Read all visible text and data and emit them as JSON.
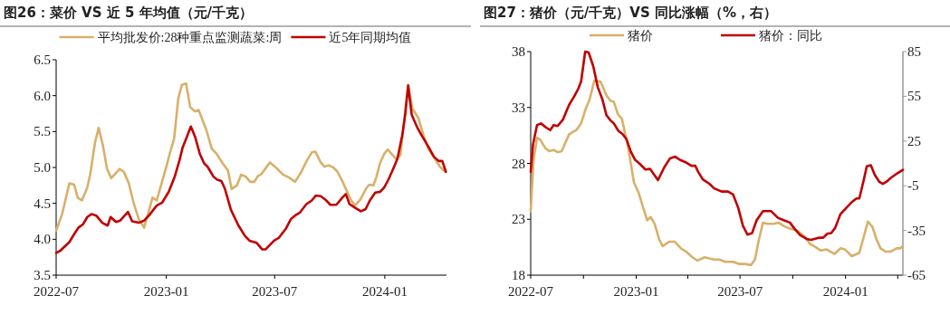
{
  "chart_data": [
    {
      "type": "line",
      "title": "图26：菜价 VS 近 5 年均值（元/千克）",
      "legend": "top",
      "xlim": [
        "2022-07-01",
        "2024-04-13"
      ],
      "xticks": [
        {
          "value": "2022-07-01",
          "label": "2022-07"
        },
        {
          "value": "2023-01-01",
          "label": "2023-01"
        },
        {
          "value": "2023-07-01",
          "label": "2023-07"
        },
        {
          "value": "2024-01-01",
          "label": "2024-01"
        }
      ],
      "ylim": [
        3.5,
        6.5
      ],
      "yticks": [
        3.5,
        {
          "value": 4,
          "label": "4.0"
        },
        4.5,
        {
          "value": 5,
          "label": "5.0"
        },
        5.5,
        {
          "value": 6,
          "label": "6.0"
        },
        6.5
      ],
      "series": [
        {
          "name": "平均批发价:28种重点监测蔬菜:周",
          "color": "#d8b06a",
          "x": [
            "2022-07-01",
            "2022-07-11",
            "2022-07-23",
            "2022-07-31",
            "2022-08-06",
            "2022-08-13",
            "2022-08-22",
            "2022-08-27",
            "2022-09-04",
            "2022-09-10",
            "2022-09-17",
            "2022-09-24",
            "2022-10-01",
            "2022-10-15",
            "2022-10-22",
            "2022-10-30",
            "2022-11-08",
            "2022-11-16",
            "2022-11-25",
            "2022-12-09",
            "2022-12-16",
            "2022-12-31",
            "2023-01-08",
            "2023-01-14",
            "2023-01-21",
            "2023-01-27",
            "2023-02-03",
            "2023-02-10",
            "2023-02-18",
            "2023-02-24",
            "2023-03-09",
            "2023-03-18",
            "2023-03-26",
            "2023-04-05",
            "2023-04-14",
            "2023-04-20",
            "2023-04-29",
            "2023-05-06",
            "2023-05-14",
            "2023-05-21",
            "2023-05-28",
            "2023-06-03",
            "2023-06-09",
            "2023-06-23",
            "2023-07-03",
            "2023-07-15",
            "2023-07-25",
            "2023-08-04",
            "2023-08-14",
            "2023-08-24",
            "2023-09-01",
            "2023-09-07",
            "2023-09-16",
            "2023-09-22",
            "2023-09-29",
            "2023-10-07",
            "2023-10-14",
            "2023-10-22",
            "2023-10-29",
            "2023-11-06",
            "2023-11-12",
            "2023-11-21",
            "2023-12-01",
            "2023-12-06",
            "2023-12-13",
            "2023-12-18",
            "2023-12-24",
            "2023-12-31",
            "2024-01-06",
            "2024-01-12",
            "2024-01-20",
            "2024-01-27",
            "2024-02-01",
            "2024-02-09",
            "2024-02-16",
            "2024-02-26",
            "2024-03-06",
            "2024-03-13",
            "2024-03-23",
            "2024-04-02",
            "2024-04-11"
          ],
          "values": [
            4.12,
            4.35,
            4.78,
            4.76,
            4.58,
            4.54,
            4.72,
            4.91,
            5.35,
            5.55,
            5.31,
            4.98,
            4.85,
            4.98,
            4.94,
            4.79,
            4.49,
            4.28,
            4.16,
            4.58,
            4.54,
            4.98,
            5.23,
            5.4,
            5.96,
            6.15,
            6.17,
            5.84,
            5.78,
            5.8,
            5.52,
            5.26,
            5.19,
            5.06,
            4.96,
            4.7,
            4.75,
            4.9,
            4.87,
            4.8,
            4.8,
            4.88,
            4.91,
            5.07,
            5.0,
            4.9,
            4.86,
            4.8,
            4.93,
            5.1,
            5.21,
            5.22,
            5.07,
            5.01,
            5.03,
            5.0,
            4.94,
            4.81,
            4.68,
            4.54,
            4.47,
            4.55,
            4.71,
            4.76,
            4.75,
            4.87,
            5.06,
            5.19,
            5.25,
            5.19,
            5.12,
            5.17,
            5.56,
            6.15,
            5.82,
            5.69,
            5.44,
            5.27,
            5.14,
            5.01,
            4.94
          ]
        },
        {
          "name": "近5年同期均值",
          "color": "#c00000",
          "x": [
            "2022-07-01",
            "2022-07-08",
            "2022-07-23",
            "2022-07-31",
            "2022-08-07",
            "2022-08-15",
            "2022-08-22",
            "2022-08-29",
            "2022-09-06",
            "2022-09-16",
            "2022-09-25",
            "2022-09-30",
            "2022-10-09",
            "2022-10-16",
            "2022-10-29",
            "2022-11-05",
            "2022-11-16",
            "2022-11-25",
            "2022-12-04",
            "2022-12-16",
            "2022-12-25",
            "2023-01-05",
            "2023-01-15",
            "2023-01-23",
            "2023-01-28",
            "2023-02-04",
            "2023-02-11",
            "2023-02-18",
            "2023-02-26",
            "2023-03-05",
            "2023-03-11",
            "2023-03-21",
            "2023-03-27",
            "2023-04-03",
            "2023-04-09",
            "2023-04-19",
            "2023-05-01",
            "2023-05-12",
            "2023-05-20",
            "2023-06-01",
            "2023-06-10",
            "2023-06-16",
            "2023-06-30",
            "2023-07-08",
            "2023-07-20",
            "2023-07-28",
            "2023-08-04",
            "2023-08-12",
            "2023-08-23",
            "2023-09-01",
            "2023-09-08",
            "2023-09-16",
            "2023-09-24",
            "2023-10-02",
            "2023-10-12",
            "2023-10-22",
            "2023-10-28",
            "2023-11-03",
            "2023-11-12",
            "2023-11-22",
            "2023-11-30",
            "2023-12-07",
            "2023-12-16",
            "2023-12-24",
            "2023-12-31",
            "2024-01-07",
            "2024-01-16",
            "2024-01-22",
            "2024-01-30",
            "2024-02-04",
            "2024-02-09",
            "2024-02-15",
            "2024-02-24",
            "2024-03-03",
            "2024-03-13",
            "2024-03-23",
            "2024-03-31",
            "2024-04-06",
            "2024-04-12"
          ],
          "values": [
            3.81,
            3.84,
            3.96,
            4.07,
            4.16,
            4.21,
            4.31,
            4.35,
            4.33,
            4.23,
            4.19,
            4.31,
            4.24,
            4.26,
            4.38,
            4.25,
            4.23,
            4.26,
            4.34,
            4.47,
            4.51,
            4.66,
            4.87,
            5.1,
            5.27,
            5.42,
            5.57,
            5.43,
            5.19,
            5.06,
            5.01,
            4.87,
            4.83,
            4.81,
            4.7,
            4.41,
            4.2,
            4.05,
            3.98,
            3.95,
            3.86,
            3.86,
            3.98,
            4.02,
            4.15,
            4.28,
            4.33,
            4.37,
            4.49,
            4.54,
            4.61,
            4.6,
            4.55,
            4.48,
            4.48,
            4.58,
            4.63,
            4.49,
            4.44,
            4.39,
            4.42,
            4.54,
            4.65,
            4.66,
            4.72,
            4.83,
            5.0,
            5.12,
            5.44,
            5.73,
            6.14,
            5.73,
            5.56,
            5.44,
            5.3,
            5.15,
            5.09,
            5.09,
            4.94
          ]
        }
      ]
    },
    {
      "type": "line",
      "title": "图27：猪价（元/千克）VS 同比涨幅（%，右）",
      "legend": "top",
      "xlim": [
        "2022-07-01",
        "2024-04-10"
      ],
      "xticks": [
        {
          "value": "2022-07-01",
          "label": "2022-07"
        },
        {
          "value": "2022-10-01",
          "label": null
        },
        {
          "value": "2023-01-01",
          "label": "2023-01"
        },
        {
          "value": "2023-04-01",
          "label": null
        },
        {
          "value": "2023-07-01",
          "label": "2023-07"
        },
        {
          "value": "2023-10-01",
          "label": null
        },
        {
          "value": "2024-01-01",
          "label": "2024-01"
        },
        {
          "value": "2024-04-01",
          "label": null
        }
      ],
      "ylim": [
        18,
        38
      ],
      "yticks": [
        18,
        23,
        28,
        33,
        38
      ],
      "y2lim": [
        -65,
        85
      ],
      "y2ticks": [
        -65,
        -35,
        -5,
        25,
        55,
        85
      ],
      "series": [
        {
          "name": "猪价",
          "color": "#d8b06a",
          "x": [
            "2022-07-01",
            "2022-07-06",
            "2022-07-12",
            "2022-07-18",
            "2022-07-26",
            "2022-08-02",
            "2022-08-10",
            "2022-08-17",
            "2022-08-24",
            "2022-09-06",
            "2022-09-19",
            "2022-09-27",
            "2022-10-05",
            "2022-10-11",
            "2022-10-20",
            "2022-10-31",
            "2022-11-10",
            "2022-11-17",
            "2022-11-23",
            "2022-11-30",
            "2022-12-07",
            "2022-12-18",
            "2022-12-28",
            "2023-01-05",
            "2023-01-14",
            "2023-01-20",
            "2023-01-26",
            "2023-02-02",
            "2023-02-10",
            "2023-02-16",
            "2023-02-28",
            "2023-03-09",
            "2023-03-20",
            "2023-03-29",
            "2023-04-09",
            "2023-04-18",
            "2023-04-30",
            "2023-05-08",
            "2023-05-17",
            "2023-05-26",
            "2023-06-05",
            "2023-06-19",
            "2023-06-30",
            "2023-07-10",
            "2023-07-20",
            "2023-07-27",
            "2023-08-03",
            "2023-08-10",
            "2023-08-18",
            "2023-08-29",
            "2023-09-06",
            "2023-09-15",
            "2023-09-24",
            "2023-10-08",
            "2023-10-21",
            "2023-10-31",
            "2023-11-10",
            "2023-11-19",
            "2023-11-29",
            "2023-12-13",
            "2023-12-23",
            "2023-12-31",
            "2024-01-12",
            "2024-01-25",
            "2024-02-01",
            "2024-02-09",
            "2024-02-17",
            "2024-02-24",
            "2024-03-02",
            "2024-03-11",
            "2024-03-19",
            "2024-03-30",
            "2024-04-05",
            "2024-04-10"
          ],
          "values": [
            23.7,
            28.3,
            30.3,
            30.1,
            29.4,
            29.1,
            29.2,
            29.0,
            29.1,
            30.6,
            31.0,
            31.6,
            32.9,
            33.6,
            35.4,
            35.3,
            34.1,
            33.6,
            33.5,
            32.4,
            32.0,
            29.4,
            26.3,
            25.4,
            23.9,
            22.9,
            23.2,
            22.6,
            21.2,
            20.6,
            21.0,
            21.0,
            20.4,
            20.1,
            19.6,
            19.3,
            19.6,
            19.5,
            19.4,
            19.4,
            19.2,
            19.2,
            19.0,
            19.0,
            18.9,
            19.4,
            21.2,
            22.7,
            22.6,
            22.6,
            22.7,
            22.4,
            22.2,
            22.0,
            21.5,
            20.8,
            20.5,
            20.2,
            20.3,
            19.9,
            20.4,
            20.3,
            19.7,
            20.0,
            21.3,
            22.8,
            22.3,
            21.2,
            20.4,
            20.1,
            20.1,
            20.4,
            20.4,
            20.6
          ]
        },
        {
          "name": "猪价：同比",
          "color": "#c00000",
          "axis": "y2",
          "x": [
            "2022-07-01",
            "2022-07-05",
            "2022-07-12",
            "2022-07-19",
            "2022-07-27",
            "2022-08-04",
            "2022-08-10",
            "2022-08-17",
            "2022-08-26",
            "2022-09-06",
            "2022-09-15",
            "2022-09-22",
            "2022-09-27",
            "2022-10-04",
            "2022-10-10",
            "2022-10-18",
            "2022-10-26",
            "2022-11-03",
            "2022-11-10",
            "2022-11-17",
            "2022-11-23",
            "2022-12-01",
            "2022-12-08",
            "2022-12-15",
            "2022-12-23",
            "2022-12-30",
            "2023-01-08",
            "2023-01-17",
            "2023-01-25",
            "2023-02-08",
            "2023-02-19",
            "2023-03-01",
            "2023-03-10",
            "2023-03-18",
            "2023-03-28",
            "2023-04-07",
            "2023-04-14",
            "2023-04-19",
            "2023-04-27",
            "2023-05-09",
            "2023-05-17",
            "2023-05-30",
            "2023-06-10",
            "2023-06-19",
            "2023-06-28",
            "2023-07-06",
            "2023-07-14",
            "2023-07-22",
            "2023-07-30",
            "2023-08-10",
            "2023-08-24",
            "2023-09-05",
            "2023-09-15",
            "2023-09-26",
            "2023-10-04",
            "2023-10-14",
            "2023-10-25",
            "2023-11-02",
            "2023-11-15",
            "2023-11-23",
            "2023-11-30",
            "2023-12-07",
            "2023-12-14",
            "2023-12-23",
            "2024-01-02",
            "2024-01-12",
            "2024-01-20",
            "2024-01-25",
            "2024-02-02",
            "2024-02-07",
            "2024-02-14",
            "2024-02-21",
            "2024-02-29",
            "2024-03-06",
            "2024-03-12",
            "2024-03-20",
            "2024-03-31",
            "2024-04-10"
          ],
          "values": [
            4.3,
            22.6,
            35.7,
            36.8,
            34.3,
            32.3,
            35.7,
            35.1,
            39.2,
            49.3,
            55.0,
            60.1,
            65.1,
            85.0,
            84.4,
            75.3,
            61.1,
            53.0,
            42.4,
            38.8,
            36.8,
            31.7,
            29.7,
            26.2,
            17.5,
            12.4,
            9.4,
            5.9,
            6.3,
            -1.2,
            7.4,
            13.4,
            14.5,
            12.4,
            10.8,
            8.4,
            8.4,
            4.3,
            -0.7,
            -3.8,
            -6.8,
            -8.9,
            -8.9,
            -10.9,
            -20.0,
            -31.8,
            -37.8,
            -36.8,
            -28.1,
            -22.0,
            -22.0,
            -26.5,
            -28.1,
            -29.7,
            -33.8,
            -38.2,
            -40.7,
            -41.3,
            -39.9,
            -39.9,
            -37.2,
            -36.8,
            -33.2,
            -24.1,
            -20.0,
            -15.9,
            -13.5,
            -13.5,
            -0.7,
            8.0,
            8.8,
            2.3,
            -2.4,
            -3.8,
            -2.4,
            0.3,
            3.3,
            5.7
          ]
        }
      ]
    }
  ]
}
